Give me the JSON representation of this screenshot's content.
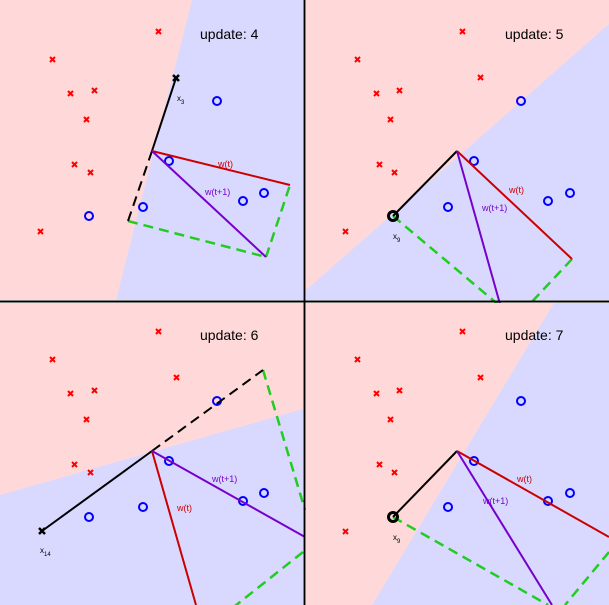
{
  "colors": {
    "negative_region": "#ffd9d9",
    "positive_region": "#d9d9ff",
    "negative_point": "#ff0000",
    "positive_point": "#0000ff",
    "w_t": "#cc0000",
    "w_t1": "#7700cc",
    "sum_vector": "#22cc22",
    "x_vector": "#000000",
    "divider": "#000000"
  },
  "panels": [
    {
      "title": "update: 4",
      "w_t_label": "w(t)",
      "w_t1_label": "w(t+1)",
      "x_label": "x",
      "x_sub": "3",
      "x_glyph": "x-mark"
    },
    {
      "title": "update: 5",
      "w_t_label": "w(t)",
      "w_t1_label": "w(t+1)",
      "x_label": "x",
      "x_sub": "9",
      "x_glyph": "circle-mark"
    },
    {
      "title": "update: 6",
      "w_t_label": "w(t)",
      "w_t1_label": "w(t+1)",
      "x_label": "x",
      "x_sub": "14",
      "x_glyph": "x-mark"
    },
    {
      "title": "update: 7",
      "w_t_label": "w(t)",
      "w_t1_label": "w(t+1)",
      "x_label": "x",
      "x_sub": "9",
      "x_glyph": "circle-mark"
    }
  ]
}
